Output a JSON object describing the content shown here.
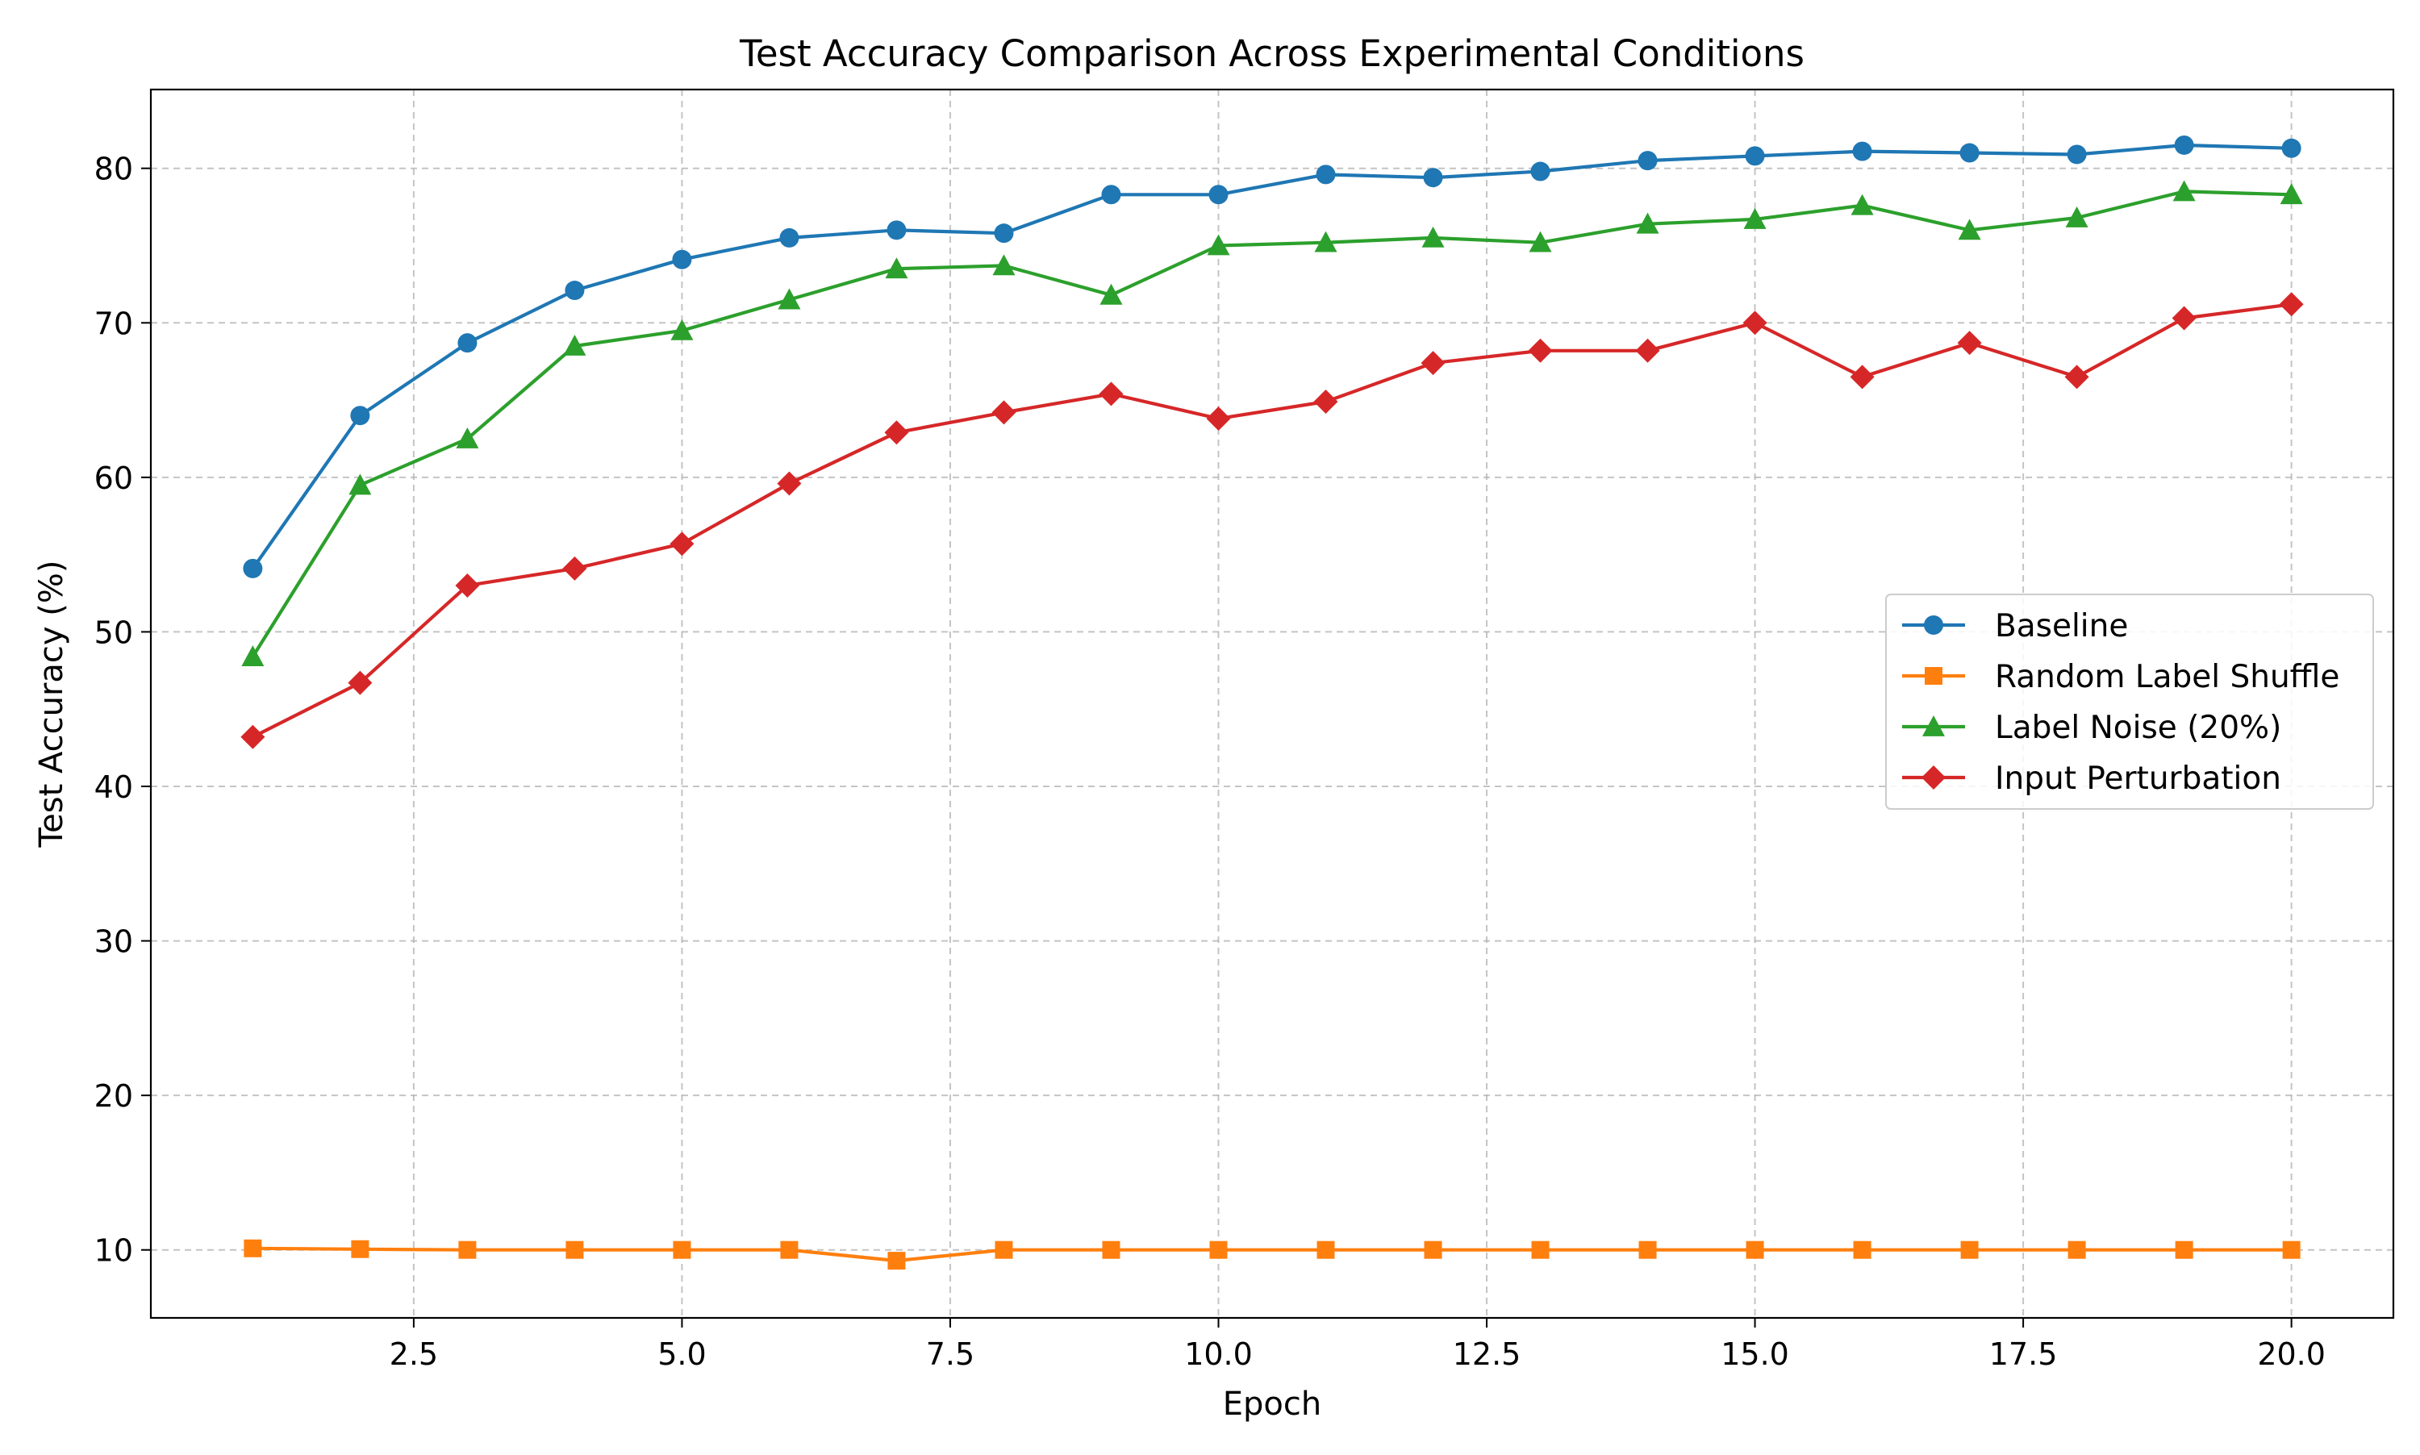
{
  "chart_data": {
    "type": "line",
    "title": "Test Accuracy Comparison Across Experimental Conditions",
    "xlabel": "Epoch",
    "ylabel": "Test Accuracy (%)",
    "xlim": [
      0.05,
      20.95
    ],
    "ylim": [
      5.6,
      85.1
    ],
    "xticks": [
      2.5,
      5.0,
      7.5,
      10.0,
      12.5,
      15.0,
      17.5,
      20.0
    ],
    "xtick_labels": [
      "2.5",
      "5.0",
      "7.5",
      "10.0",
      "12.5",
      "15.0",
      "17.5",
      "20.0"
    ],
    "yticks": [
      10,
      20,
      30,
      40,
      50,
      60,
      70,
      80
    ],
    "ytick_labels": [
      "10",
      "20",
      "30",
      "40",
      "50",
      "60",
      "70",
      "80"
    ],
    "grid": true,
    "legend_position": "center-right",
    "x": [
      1,
      2,
      3,
      4,
      5,
      6,
      7,
      8,
      9,
      10,
      11,
      12,
      13,
      14,
      15,
      16,
      17,
      18,
      19,
      20
    ],
    "series": [
      {
        "name": "Baseline",
        "color": "#1f77b4",
        "marker": "circle",
        "values": [
          54.1,
          64.0,
          68.7,
          72.1,
          74.1,
          75.5,
          76.0,
          75.8,
          78.3,
          78.3,
          79.6,
          79.4,
          79.8,
          80.5,
          80.8,
          81.1,
          81.0,
          80.9,
          81.5,
          81.3
        ]
      },
      {
        "name": "Random Label Shuffle",
        "color": "#ff7f0e",
        "marker": "square",
        "values": [
          10.1,
          10.05,
          10.0,
          10.0,
          10.0,
          10.0,
          9.3,
          10.0,
          10.0,
          10.0,
          10.0,
          10.0,
          10.0,
          10.0,
          10.0,
          10.0,
          10.0,
          10.0,
          10.0,
          10.0
        ]
      },
      {
        "name": "Label Noise (20%)",
        "color": "#2ca02c",
        "marker": "triangle",
        "values": [
          48.4,
          59.5,
          62.5,
          68.5,
          69.5,
          71.5,
          73.5,
          73.7,
          71.8,
          75.0,
          75.2,
          75.5,
          75.2,
          76.4,
          76.7,
          77.6,
          76.0,
          76.8,
          78.5,
          78.3
        ]
      },
      {
        "name": "Input Perturbation",
        "color": "#d62728",
        "marker": "diamond",
        "values": [
          43.2,
          46.7,
          53.0,
          54.1,
          55.7,
          59.6,
          62.9,
          64.2,
          65.4,
          63.8,
          64.9,
          67.4,
          68.2,
          68.2,
          70.0,
          66.5,
          68.7,
          66.5,
          70.3,
          71.2
        ]
      }
    ]
  }
}
